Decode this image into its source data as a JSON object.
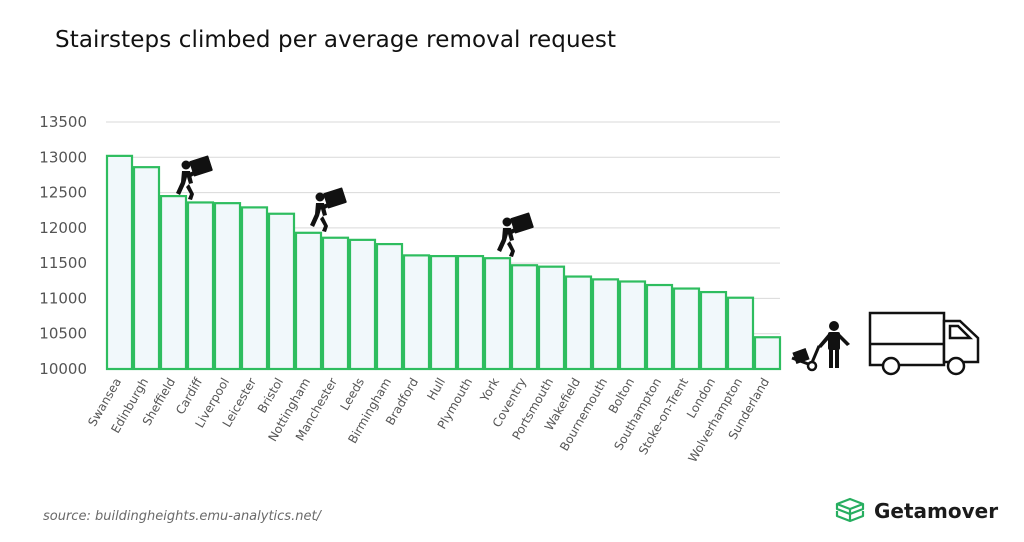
{
  "title": "Stairsteps climbed per average removal request",
  "source": "source: buildingheights.emu-analytics.net/",
  "brand": {
    "name": "Getamover",
    "icon": "box-logo-icon",
    "color": "#27ae60"
  },
  "colors": {
    "bar_stroke": "#2ebd5f",
    "bar_fill": "#f1f8fb",
    "grid": "#d9d9d9",
    "axis_text": "#555555"
  },
  "icons": [
    "mover-carrying-box-icon",
    "mover-with-hand-truck-icon",
    "moving-truck-icon"
  ],
  "chart_data": {
    "type": "bar",
    "title": "Stairsteps climbed per average removal request",
    "xlabel": "",
    "ylabel": "",
    "ylim": [
      10000,
      13500
    ],
    "yticks": [
      10000,
      10500,
      11000,
      11500,
      12000,
      12500,
      13000,
      13500
    ],
    "grid": true,
    "categories": [
      "Swansea",
      "Edinburgh",
      "Sheffield",
      "Cardiff",
      "Liverpool",
      "Leicester",
      "Bristol",
      "Nottingham",
      "Manchester",
      "Leeds",
      "Birmingham",
      "Bradford",
      "Hull",
      "Plymouth",
      "York",
      "Coventry",
      "Portsmouth",
      "Wakefield",
      "Bournemouth",
      "Bolton",
      "Southampton",
      "Stoke-on-Trent",
      "London",
      "Wolverhampton",
      "Sunderland"
    ],
    "values": [
      13020,
      12860,
      12450,
      12360,
      12350,
      12290,
      12200,
      11930,
      11860,
      11830,
      11770,
      11610,
      11600,
      11600,
      11570,
      11470,
      11450,
      11310,
      11270,
      11240,
      11190,
      11140,
      11090,
      11010,
      10450
    ]
  }
}
